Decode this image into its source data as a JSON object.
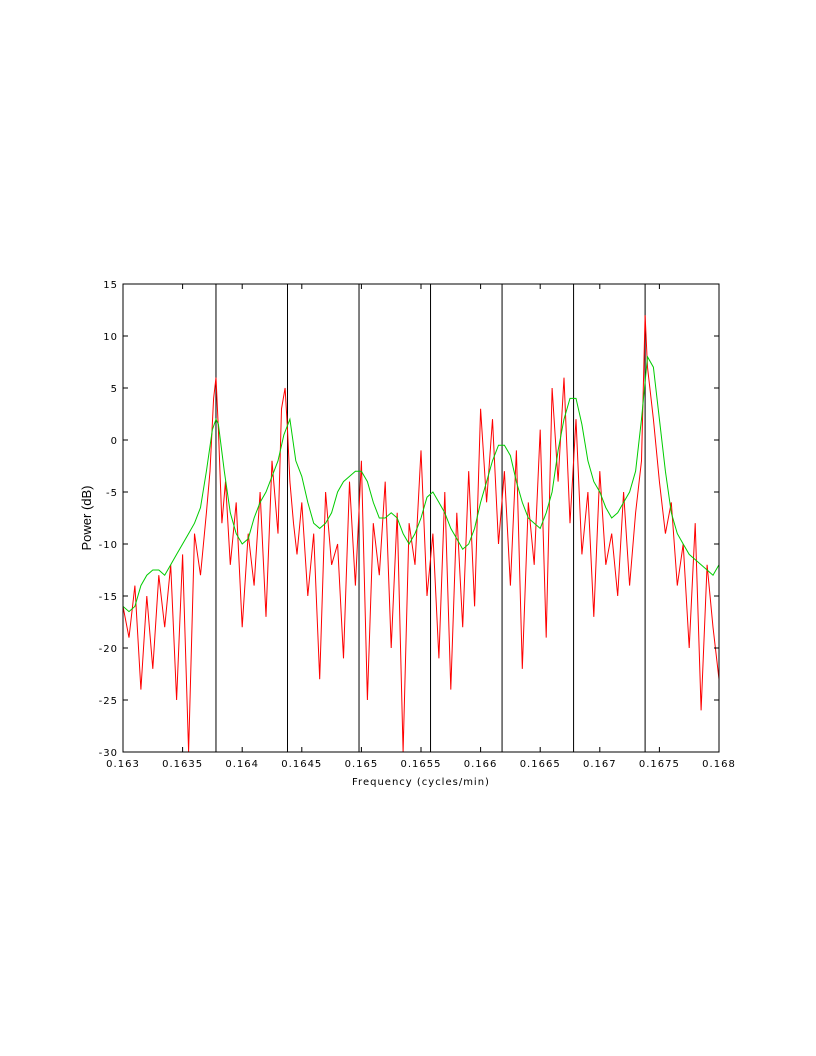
{
  "chart_data": {
    "type": "line",
    "title": "",
    "xlabel": "Frequency (cycles/min)",
    "ylabel": "Power (dB)",
    "xlim": [
      0.163,
      0.168
    ],
    "ylim": [
      -30,
      15
    ],
    "xticks": [
      0.163,
      0.1635,
      0.164,
      0.1645,
      0.165,
      0.1655,
      0.166,
      0.1665,
      0.167,
      0.1675,
      0.168
    ],
    "xtick_labels": [
      "0.163",
      "0.1635",
      "0.164",
      "0.1645",
      "0.165",
      "0.1655",
      "0.166",
      "0.1665",
      "0.167",
      "0.1675",
      "0.168"
    ],
    "yticks": [
      15,
      10,
      5,
      0,
      -5,
      -10,
      -15,
      -20,
      -25,
      -30
    ],
    "ytick_labels": [
      "15",
      "10",
      "5",
      "0",
      "-5",
      "-10",
      "-15",
      "-20",
      "-25",
      "-30"
    ],
    "grid": false,
    "legend": "none",
    "vertical_lines": [
      0.16378,
      0.16438,
      0.16498,
      0.16558,
      0.16618,
      0.16678,
      0.16738
    ],
    "colors": {
      "raw": "#ff0000",
      "smoothed": "#00cc00",
      "vlines": "#000000"
    },
    "series": [
      {
        "x": [
          0.163,
          0.16305,
          0.1631,
          0.16315,
          0.1632,
          0.16325,
          0.1633,
          0.16335,
          0.1634,
          0.16345,
          0.1635,
          0.16355,
          0.1636,
          0.16365,
          0.1637,
          0.16373,
          0.16376,
          0.16378,
          0.1638,
          0.16383,
          0.16386,
          0.1639,
          0.16395,
          0.164,
          0.16405,
          0.1641,
          0.16415,
          0.1642,
          0.16425,
          0.1643,
          0.16433,
          0.16436,
          0.16438,
          0.1644,
          0.16443,
          0.16446,
          0.1645,
          0.16455,
          0.1646,
          0.16465,
          0.1647,
          0.16475,
          0.1648,
          0.16485,
          0.1649,
          0.16495,
          0.165,
          0.16505,
          0.1651,
          0.16515,
          0.1652,
          0.16525,
          0.1653,
          0.16535,
          0.1654,
          0.16545,
          0.1655,
          0.16555,
          0.1656,
          0.16565,
          0.1657,
          0.16575,
          0.1658,
          0.16585,
          0.1659,
          0.16595,
          0.166,
          0.16605,
          0.1661,
          0.16615,
          0.1662,
          0.16625,
          0.1663,
          0.16635,
          0.1664,
          0.16645,
          0.1665,
          0.16655,
          0.1666,
          0.16665,
          0.1667,
          0.16675,
          0.1668,
          0.16685,
          0.1669,
          0.16695,
          0.167,
          0.16705,
          0.1671,
          0.16715,
          0.1672,
          0.16725,
          0.1673,
          0.16735,
          0.16738,
          0.1674,
          0.16745,
          0.1675,
          0.16755,
          0.1676,
          0.16765,
          0.1677,
          0.16775,
          0.1678,
          0.16785,
          0.1679,
          0.16795,
          0.168
        ],
        "y": [
          -16,
          -19,
          -14,
          -24,
          -15,
          -22,
          -13,
          -18,
          -12,
          -25,
          -11,
          -30,
          -9,
          -13,
          -7,
          -3,
          4,
          6,
          1,
          -8,
          -4,
          -12,
          -6,
          -18,
          -9,
          -14,
          -5,
          -17,
          -2,
          -9,
          3,
          5,
          1,
          -4,
          -8,
          -11,
          -6,
          -15,
          -9,
          -23,
          -5,
          -12,
          -10,
          -21,
          -4,
          -14,
          -2,
          -25,
          -8,
          -13,
          -4,
          -20,
          -7,
          -30,
          -8,
          -12,
          -1,
          -15,
          -9,
          -21,
          -5,
          -24,
          -7,
          -18,
          -3,
          -16,
          3,
          -6,
          2,
          -10,
          -3,
          -14,
          -1,
          -22,
          -6,
          -12,
          1,
          -19,
          5,
          -4,
          6,
          -8,
          2,
          -11,
          -5,
          -17,
          -3,
          -12,
          -9,
          -15,
          -5,
          -14,
          -7,
          -2,
          12,
          7,
          2,
          -4,
          -9,
          -6,
          -14,
          -10,
          -20,
          -8,
          -26,
          -12,
          -18,
          -23
        ]
      },
      {
        "x": [
          0.163,
          0.16305,
          0.1631,
          0.16315,
          0.1632,
          0.16325,
          0.1633,
          0.16335,
          0.1634,
          0.16345,
          0.1635,
          0.16355,
          0.1636,
          0.16365,
          0.1637,
          0.16375,
          0.16378,
          0.1638,
          0.16385,
          0.1639,
          0.16395,
          0.164,
          0.16405,
          0.1641,
          0.16415,
          0.1642,
          0.16425,
          0.1643,
          0.16435,
          0.1644,
          0.16445,
          0.1645,
          0.16455,
          0.1646,
          0.16465,
          0.1647,
          0.16475,
          0.1648,
          0.16485,
          0.1649,
          0.16495,
          0.165,
          0.16505,
          0.1651,
          0.16515,
          0.1652,
          0.16525,
          0.1653,
          0.16535,
          0.1654,
          0.16545,
          0.1655,
          0.16555,
          0.1656,
          0.16565,
          0.1657,
          0.16575,
          0.1658,
          0.16585,
          0.1659,
          0.16595,
          0.166,
          0.16605,
          0.1661,
          0.16615,
          0.1662,
          0.16625,
          0.1663,
          0.16635,
          0.1664,
          0.16645,
          0.1665,
          0.16655,
          0.1666,
          0.16665,
          0.1667,
          0.16675,
          0.1668,
          0.16685,
          0.1669,
          0.16695,
          0.167,
          0.16705,
          0.1671,
          0.16715,
          0.1672,
          0.16725,
          0.1673,
          0.16735,
          0.1674,
          0.16745,
          0.1675,
          0.16755,
          0.1676,
          0.16765,
          0.1677,
          0.16775,
          0.1678,
          0.16785,
          0.1679,
          0.16795,
          0.168
        ],
        "y": [
          -16,
          -16.5,
          -16,
          -14,
          -13,
          -12.5,
          -12.5,
          -13,
          -12,
          -11,
          -10,
          -9,
          -8,
          -6.5,
          -3,
          1,
          2,
          1.5,
          -3,
          -7,
          -9,
          -10,
          -9.5,
          -7.5,
          -6,
          -5,
          -3.5,
          -2,
          0.5,
          2,
          -2,
          -3.5,
          -6,
          -8,
          -8.5,
          -8,
          -7,
          -5,
          -4,
          -3.5,
          -3,
          -3,
          -4,
          -6,
          -7.5,
          -7.5,
          -7,
          -7.5,
          -9,
          -10,
          -9,
          -7.5,
          -5.5,
          -5,
          -6,
          -7,
          -8.5,
          -9.5,
          -10.5,
          -10,
          -8.5,
          -6,
          -4,
          -2,
          -0.5,
          -0.5,
          -1.5,
          -4,
          -6,
          -7.5,
          -8,
          -8.5,
          -7,
          -5,
          -1,
          2,
          4,
          4,
          1.5,
          -2,
          -4,
          -5,
          -6.5,
          -7.5,
          -7,
          -6,
          -5,
          -3,
          2,
          8,
          7,
          2,
          -3,
          -7,
          -9,
          -10,
          -11,
          -11.5,
          -12,
          -12.5,
          -13,
          -12
        ]
      }
    ]
  }
}
